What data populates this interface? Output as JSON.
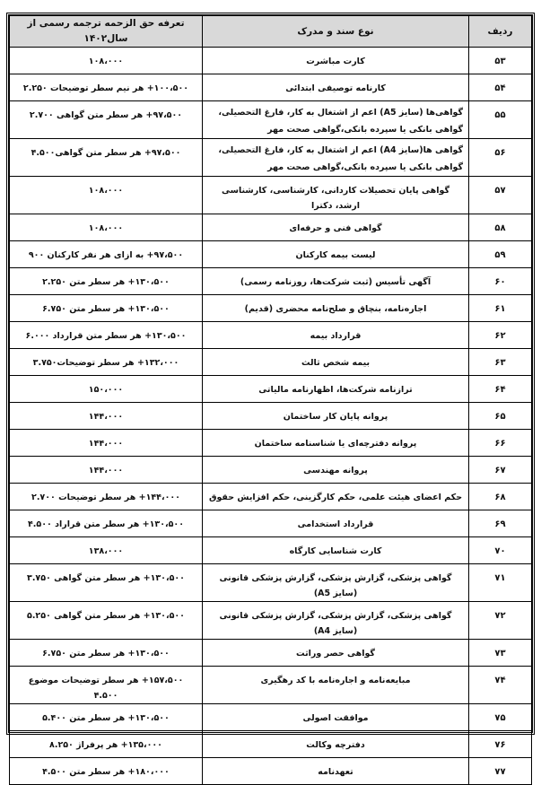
{
  "table": {
    "headers": {
      "row_no": "ردیف",
      "document_type": "نوع سند و مدرک",
      "fee": "تعرفه حق الزحمه ترجمه رسمی از سال۱۴۰۲"
    },
    "rows": [
      {
        "no": "۵۳",
        "doc": "کارت مباشرت",
        "fee": "۱۰۸،۰۰۰"
      },
      {
        "no": "۵۴",
        "doc": "کارنامه توصیفی ابتدائی",
        "fee": "۱۰۰،۵۰۰+ هر نیم سطر توضیحات ۲.۲۵۰"
      },
      {
        "no": "۵۵",
        "doc": "گواهی‌ها (سایز A5) اعم از  اشتغال به کار، فارغ التحصیلی، گواهی بانکی یا سپرده بانکی،گواهی صحت مهر",
        "fee": "۹۷،۵۰۰+ هر سطر متن گواهی ۲.۷۰۰"
      },
      {
        "no": "۵۶",
        "doc": "گواهی ها(سایز A4) اعم از  اشتغال به کار، فارغ التحصیلی، گواهی بانکی یا سپرده بانکی،گواهی صحت مهر",
        "fee": "۹۷،۵۰۰+ هر سطر متن گواهی۴.۵۰۰"
      },
      {
        "no": "۵۷",
        "doc": "گواهی پایان تحصیلات کاردانی، کارشناسی، کارشناسی ارشد، دکترا",
        "fee": "۱۰۸،۰۰۰"
      },
      {
        "no": "۵۸",
        "doc": "گواهی فنی و حرفه‌ای",
        "fee": "۱۰۸،۰۰۰"
      },
      {
        "no": "۵۹",
        "doc": "لیست بیمه کارکنان",
        "fee": "۹۷،۵۰۰+ به ازای هر نفر کارکنان ۹۰۰"
      },
      {
        "no": "۶۰",
        "doc": "آگهی تأسیس (ثبت شرکت‌ها، روزنامه رسمی)",
        "fee": "۱۳۰،۵۰۰+ هر سطر متن ۲.۲۵۰"
      },
      {
        "no": "۶۱",
        "doc": "اجاره‌نامه، بنچاق و صلح‌نامه محضری (قدیم)",
        "fee": "۱۳۰،۵۰۰+ هر سطر متن ۶.۷۵۰"
      },
      {
        "no": "۶۲",
        "doc": "قرارداد بیمه",
        "fee": "۱۳۰،۵۰۰+ هر سطر متن قرارداد ۶.۰۰۰"
      },
      {
        "no": "۶۳",
        "doc": "بیمه شخص ثالث",
        "fee": "۱۳۲،۰۰۰+ هر سطر توضیحات۳.۷۵۰"
      },
      {
        "no": "۶۴",
        "doc": "ترازنامه شرکت‌ها، اظهارنامه مالیاتی",
        "fee": "۱۵۰،۰۰۰"
      },
      {
        "no": "۶۵",
        "doc": "پروانه پایان کار ساختمان",
        "fee": "۱۴۴،۰۰۰"
      },
      {
        "no": "۶۶",
        "doc": "پروانه دفترچه‌ای یا شناسنامه ساختمان",
        "fee": "۱۴۴،۰۰۰"
      },
      {
        "no": "۶۷",
        "doc": "پروانه مهندسی",
        "fee": "۱۴۴،۰۰۰"
      },
      {
        "no": "۶۸",
        "doc": "حکم اعضای هیئت علمی، حکم کارگزینی، حکم افزایش حقوق",
        "fee": "۱۴۴،۰۰۰+ هر سطر توضیحات ۲.۷۰۰"
      },
      {
        "no": "۶۹",
        "doc": "قرارداد استخدامی",
        "fee": "۱۳۰،۵۰۰+ هر سطر متن قراراد ۴.۵۰۰"
      },
      {
        "no": "۷۰",
        "doc": "کارت شناسایی کارگاه",
        "fee": "۱۳۸،۰۰۰"
      },
      {
        "no": "۷۱",
        "doc": "گواهی پزشکی، گزارش پزشکی، گزارش پزشکی قانونی (سایز A5)",
        "fee": "۱۳۰،۵۰۰+ هر سطر متن گواهی ۳.۷۵۰"
      },
      {
        "no": "۷۲",
        "doc": "گواهی پزشکی، گزارش پزشکی، گزارش پزشکی قانونی (سایز A4)",
        "fee": "۱۳۰،۵۰۰+ هر سطر متن گواهی ۵.۲۵۰"
      },
      {
        "no": "۷۳",
        "doc": "گواهی حصر وراثت",
        "fee": "۱۳۰،۵۰۰+ هر سطر متن ۶.۷۵۰"
      },
      {
        "no": "۷۴",
        "doc": "مبایعه‌نامه و اجاره‌نامه با کد رهگیری",
        "fee": "۱۵۷،۵۰۰+ هر سطر توضیحات موضوع ۴.۵۰۰"
      },
      {
        "no": "۷۵",
        "doc": "موافقت اصولی",
        "fee": "۱۳۰،۵۰۰+ هر سطر متن ۵.۴۰۰"
      },
      {
        "no": "۷۶",
        "doc": "دفترچه وکالت",
        "fee": "۱۳۵،۰۰۰+ هر پرفراژ ۸.۲۵۰"
      },
      {
        "no": "۷۷",
        "doc": "تعهدنامه",
        "fee": "۱۸۰،۰۰۰+ هر سطر متن ۴.۵۰۰"
      }
    ]
  }
}
